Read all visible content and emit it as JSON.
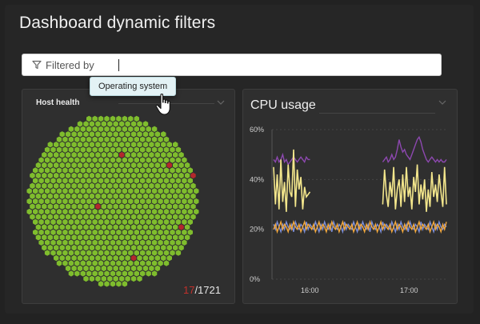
{
  "page": {
    "title": "Dashboard dynamic filters"
  },
  "filter": {
    "label": "Filtered by"
  },
  "tooltip": {
    "option": "Operating system"
  },
  "host_tile": {
    "title": "Host health",
    "problem_count": "17",
    "total_count": "/1721",
    "colors": {
      "healthy": "#7fbd2d",
      "problem": "#b3282c"
    }
  },
  "cpu_tile": {
    "title": "CPU usage",
    "colors": {
      "purple": "#8d48b0",
      "yellow": "#f3e68c",
      "orange": "#f2a73b",
      "blue": "#7a8ed8"
    }
  },
  "chart_data": {
    "type": "line",
    "title": "CPU usage",
    "xlabel": "",
    "ylabel": "",
    "ylim": [
      0,
      60
    ],
    "y_ticks": [
      "0%",
      "20%",
      "40%",
      "60%"
    ],
    "x_ticks": [
      "16:00",
      "17:00"
    ],
    "x_range": [
      "15:43",
      "17:38"
    ],
    "series": [
      {
        "values": [
          48,
          47,
          49,
          47,
          48,
          50,
          47,
          48,
          46,
          47,
          48,
          49,
          48,
          47,
          48,
          49,
          48,
          47,
          49,
          48,
          48,
          null,
          null,
          null,
          null,
          null,
          null,
          null,
          null,
          null,
          null,
          null,
          null,
          null,
          null,
          null,
          null,
          null,
          null,
          null,
          null,
          null,
          null,
          null,
          null,
          null,
          null,
          null,
          null,
          null,
          null,
          null,
          null,
          null,
          null,
          null,
          null,
          null,
          null,
          null,
          47,
          48,
          49,
          47,
          48,
          50,
          48,
          49,
          52,
          56,
          53,
          51,
          52,
          50,
          49,
          48,
          50,
          52,
          54,
          56,
          57,
          55,
          52,
          50,
          48,
          47,
          48,
          49,
          48,
          47,
          48,
          47,
          48,
          47,
          47,
          48
        ]
      },
      {
        "values": [
          45,
          30,
          42,
          28,
          48,
          31,
          39,
          27,
          46,
          35,
          33,
          52,
          29,
          44,
          36,
          41,
          28,
          37,
          33,
          34,
          35,
          null,
          null,
          null,
          null,
          null,
          null,
          null,
          null,
          null,
          null,
          null,
          null,
          null,
          null,
          null,
          null,
          null,
          null,
          null,
          null,
          null,
          null,
          null,
          null,
          null,
          null,
          null,
          null,
          null,
          null,
          null,
          null,
          null,
          null,
          null,
          null,
          null,
          null,
          null,
          30,
          44,
          34,
          29,
          39,
          33,
          45,
          28,
          36,
          40,
          29,
          42,
          31,
          45,
          33,
          37,
          28,
          41,
          35,
          46,
          30,
          38,
          32,
          40,
          27,
          36,
          29,
          43,
          33,
          38,
          31,
          42,
          35,
          29,
          45,
          30
        ]
      },
      {
        "values": [
          22,
          20,
          23,
          21,
          19,
          22,
          20,
          23,
          21,
          20,
          22,
          19,
          23,
          21,
          20,
          22,
          21,
          19,
          23,
          20,
          22,
          21,
          20,
          23,
          21,
          19,
          22,
          20,
          23,
          21,
          20,
          22,
          19,
          23,
          21,
          20,
          22,
          21,
          19,
          23,
          20,
          22,
          21,
          20,
          23,
          21,
          19,
          22,
          20,
          23,
          21,
          20,
          22,
          19,
          23,
          21,
          20,
          22,
          21,
          19,
          23,
          20,
          22,
          21,
          20,
          23,
          21,
          19,
          22,
          20,
          23,
          21,
          20,
          22,
          19,
          23,
          21,
          20,
          22,
          21,
          19,
          23,
          20,
          22,
          21,
          20,
          23,
          21,
          19,
          22,
          20,
          23,
          21,
          20,
          22,
          21
        ]
      },
      {
        "values": [
          20,
          22,
          19,
          21,
          23,
          20,
          22,
          21,
          19,
          22,
          20,
          23,
          21,
          20,
          22,
          19,
          21,
          23,
          20,
          22,
          21,
          20,
          22,
          19,
          21,
          23,
          20,
          22,
          21,
          19,
          22,
          20,
          23,
          21,
          20,
          22,
          19,
          21,
          23,
          20,
          22,
          21,
          20,
          22,
          19,
          21,
          23,
          20,
          22,
          21,
          19,
          22,
          20,
          23,
          21,
          20,
          22,
          19,
          21,
          23,
          20,
          22,
          21,
          20,
          22,
          19,
          21,
          23,
          20,
          22,
          21,
          19,
          22,
          20,
          23,
          21,
          20,
          22,
          19,
          21,
          23,
          20,
          22,
          21,
          20,
          22,
          19,
          21,
          23,
          20,
          22,
          21,
          19,
          22,
          20,
          23
        ]
      }
    ]
  }
}
